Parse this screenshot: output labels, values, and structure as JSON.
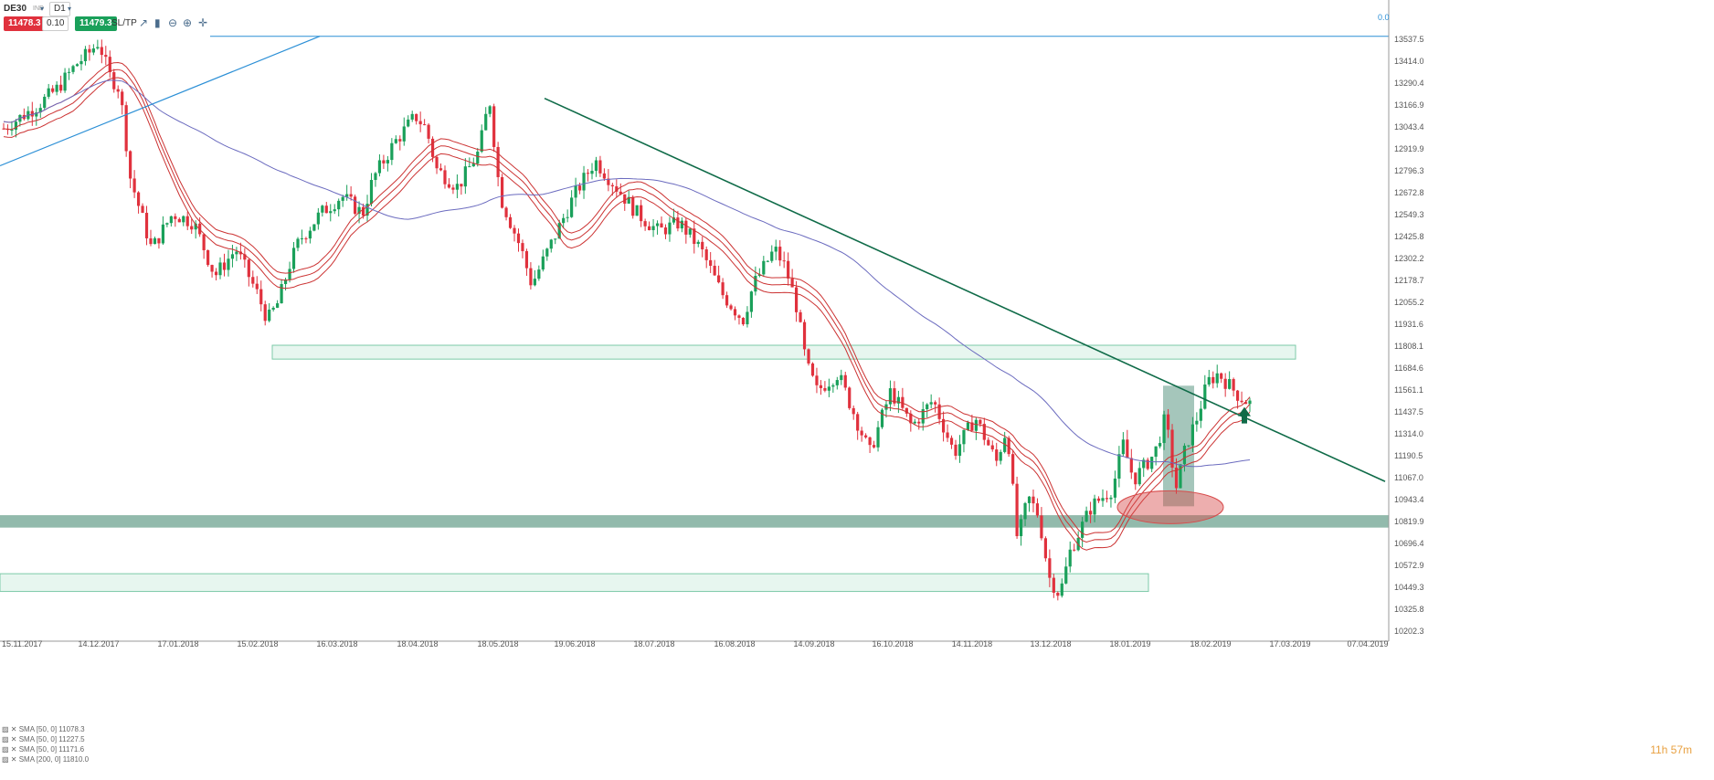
{
  "toolbar": {
    "symbol": "DE30",
    "symbol_type": "IND",
    "timeframe": "D1",
    "sell_price": "11478.3",
    "lot": "0.10",
    "buy_price": "11479.3",
    "sltp_label": "SL/TP",
    "icons": [
      "line-chart-icon",
      "candles-icon",
      "zoom-out-icon",
      "zoom-in-icon",
      "crosshair-icon"
    ]
  },
  "top_right_value": "0.0",
  "legend": [
    "SMA [50, 0] 11078.3",
    "SMA [50, 0] 11227.5",
    "SMA [50, 0] 11171.6",
    "SMA [200, 0] 11810.0"
  ],
  "timer": "11h 57m",
  "colors": {
    "bull": "#1aa05a",
    "bear": "#e0313d",
    "sma_red": "#cc3333",
    "sma_200": "#6b6bbf",
    "trendline": "#0f6b48",
    "uptrend": "#2b8fd6",
    "support_zone": "#7fae9e",
    "resistance_zone": "#d7f0e5",
    "ellipse": "#d84b4b"
  },
  "chart_data": {
    "type": "candlestick",
    "ylim": [
      10150,
      13600
    ],
    "y_ticks": [
      "13537.5",
      "13414.0",
      "13290.4",
      "13166.9",
      "13043.4",
      "12919.9",
      "12796.3",
      "12672.8",
      "12549.3",
      "12425.8",
      "12302.2",
      "12178.7",
      "12055.2",
      "11931.6",
      "11808.1",
      "11684.6",
      "11561.1",
      "11437.5",
      "11314.0",
      "11190.5",
      "11067.0",
      "10943.4",
      "10819.9",
      "10696.4",
      "10572.9",
      "10449.3",
      "10325.8",
      "10202.3"
    ],
    "x_ticks": [
      "15.11.2017",
      "14.12.2017",
      "17.01.2018",
      "15.02.2018",
      "16.03.2018",
      "18.04.2018",
      "18.05.2018",
      "19.06.2018",
      "18.07.2018",
      "16.08.2018",
      "14.09.2018",
      "16.10.2018",
      "14.11.2018",
      "13.12.2018",
      "18.01.2019",
      "18.02.2019",
      "17.03.2019",
      "07.04.2019"
    ],
    "price_path": [
      [
        0,
        13030
      ],
      [
        3,
        13150
      ],
      [
        5,
        13250
      ],
      [
        7,
        13400
      ],
      [
        8,
        13450
      ],
      [
        9,
        13520
      ],
      [
        10,
        13330
      ],
      [
        11,
        13250
      ],
      [
        12,
        12750
      ],
      [
        14,
        12350
      ],
      [
        16,
        12550
      ],
      [
        18,
        12500
      ],
      [
        20,
        12200
      ],
      [
        22,
        12350
      ],
      [
        24,
        12100
      ],
      [
        25,
        11950
      ],
      [
        26,
        12050
      ],
      [
        27,
        12250
      ],
      [
        28,
        12400
      ],
      [
        30,
        12550
      ],
      [
        32,
        12650
      ],
      [
        34,
        12550
      ],
      [
        35,
        12750
      ],
      [
        37,
        12950
      ],
      [
        39,
        13100
      ],
      [
        40,
        13030
      ],
      [
        41,
        12800
      ],
      [
        43,
        12700
      ],
      [
        45,
        12900
      ],
      [
        46,
        13200
      ],
      [
        47,
        12650
      ],
      [
        49,
        12350
      ],
      [
        50,
        12150
      ],
      [
        52,
        12400
      ],
      [
        54,
        12650
      ],
      [
        56,
        12850
      ],
      [
        58,
        12700
      ],
      [
        60,
        12550
      ],
      [
        62,
        12450
      ],
      [
        64,
        12500
      ],
      [
        66,
        12350
      ],
      [
        68,
        12100
      ],
      [
        70,
        11950
      ],
      [
        71,
        12150
      ],
      [
        73,
        12350
      ],
      [
        74,
        12250
      ],
      [
        75,
        12050
      ],
      [
        76,
        11700
      ],
      [
        77,
        11550
      ],
      [
        79,
        11650
      ],
      [
        81,
        11350
      ],
      [
        82,
        11200
      ],
      [
        84,
        11550
      ],
      [
        86,
        11350
      ],
      [
        88,
        11500
      ],
      [
        90,
        11200
      ],
      [
        92,
        11400
      ],
      [
        94,
        11150
      ],
      [
        95,
        11350
      ],
      [
        96,
        10700
      ],
      [
        97,
        10950
      ],
      [
        98,
        10850
      ],
      [
        99,
        10500
      ],
      [
        100,
        10400
      ],
      [
        101,
        10650
      ],
      [
        103,
        10900
      ],
      [
        104,
        10950
      ],
      [
        105,
        11000
      ],
      [
        106,
        11250
      ],
      [
        107,
        11050
      ],
      [
        109,
        11200
      ],
      [
        110,
        11400
      ],
      [
        111,
        11000
      ],
      [
        112,
        11250
      ],
      [
        113,
        11400
      ],
      [
        114,
        11600
      ],
      [
        115,
        11650
      ],
      [
        117,
        11520
      ],
      [
        118,
        11480
      ]
    ],
    "candles_count": 306,
    "sma_offsets": [
      0,
      40,
      -45
    ],
    "trendline_down": {
      "start": [
        12470,
        13200
      ],
      "end": [
        17950,
        11040
      ]
    },
    "trendline_up": {
      "start": [
        0,
        12820
      ],
      "end": [
        350,
        13550
      ]
    },
    "resistance_zone": {
      "y": [
        11730,
        11808
      ]
    },
    "support_zone": {
      "y": [
        10780,
        10850
      ]
    },
    "lower_zone": {
      "y": [
        10420,
        10520
      ]
    }
  }
}
